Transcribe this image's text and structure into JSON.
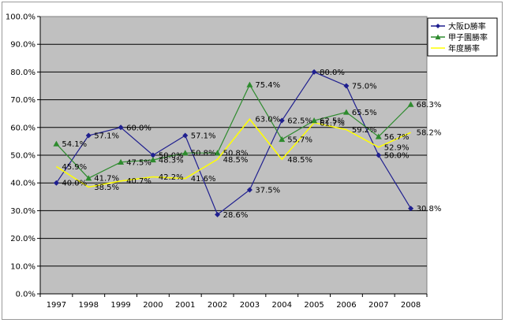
{
  "chart_data": {
    "type": "line",
    "categories": [
      "1997",
      "1998",
      "1999",
      "2000",
      "2001",
      "2002",
      "2003",
      "2004",
      "2005",
      "2006",
      "2007",
      "2008"
    ],
    "ylim": [
      0,
      100
    ],
    "y_ticks": [
      "0.0%",
      "10.0%",
      "20.0%",
      "30.0%",
      "40.0%",
      "50.0%",
      "60.0%",
      "70.0%",
      "80.0%",
      "90.0%",
      "100.0%"
    ],
    "grid": true,
    "legend_position": "top-right",
    "plot_background": "#c0c0c0",
    "series": [
      {
        "name": "大阪D勝率",
        "color": "#1f1f8f",
        "marker": "diamond",
        "values": [
          40.0,
          57.1,
          60.0,
          50.0,
          57.1,
          28.6,
          37.5,
          62.5,
          80.0,
          75.0,
          50.0,
          30.8
        ],
        "labels": [
          "40.0%",
          "57.1%",
          "60.0%",
          "50.0%",
          "57.1%",
          "28.6%",
          "37.5%",
          "62.5%",
          "80.0%",
          "75.0%",
          "50.0%",
          "30.8%"
        ]
      },
      {
        "name": "甲子園勝率",
        "color": "#2e8b2e",
        "marker": "triangle",
        "values": [
          54.1,
          41.7,
          47.5,
          48.3,
          50.8,
          50.8,
          75.4,
          55.7,
          62.5,
          65.5,
          56.7,
          68.3
        ],
        "labels": [
          "54.1%",
          "41.7%",
          "47.5%",
          "48.3%",
          "50.8%",
          "50.8%",
          "75.4%",
          "55.7%",
          "62.5%",
          "65.5%",
          "56.7%",
          "68.3%"
        ]
      },
      {
        "name": "年度勝率",
        "color": "#ffff00",
        "marker": "none",
        "values": [
          45.9,
          38.5,
          40.7,
          42.2,
          41.6,
          48.5,
          63.0,
          48.5,
          61.7,
          59.2,
          52.9,
          58.2
        ],
        "labels": [
          "45.9%",
          "38.5%",
          "40.7%",
          "42.2%",
          "41.6%",
          "48.5%",
          "63.0%",
          "48.5%",
          "61.7%",
          "59.2%",
          "52.9%",
          "58.2%"
        ]
      }
    ]
  }
}
